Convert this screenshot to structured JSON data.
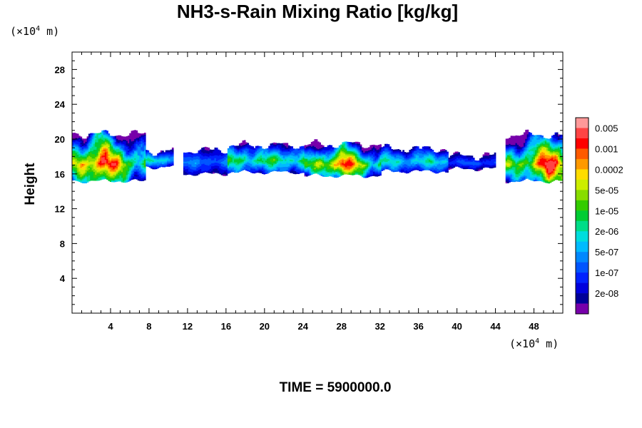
{
  "chart_data": {
    "type": "heatmap",
    "title": "NH3-s-Rain Mixing Ratio [kg/kg]",
    "ylabel": "Height",
    "xlabel": "",
    "y_unit": {
      "prefix": "(×10",
      "exp": "4",
      "suffix": " m)"
    },
    "x_unit": {
      "prefix": "(×10",
      "exp": "4",
      "suffix": " m)"
    },
    "xlim": [
      0,
      51
    ],
    "ylim": [
      0,
      30
    ],
    "xticks": [
      4,
      8,
      12,
      16,
      20,
      24,
      28,
      32,
      36,
      40,
      44,
      48
    ],
    "yticks": [
      4,
      8,
      12,
      16,
      20,
      24,
      28
    ],
    "x_tick_labels": [
      "4",
      "8",
      "12",
      "16",
      "20",
      "24",
      "28",
      "32",
      "36",
      "40",
      "44",
      "48"
    ],
    "y_tick_labels": [
      "4",
      "8",
      "12",
      "16",
      "20",
      "24",
      "28"
    ],
    "footer": "TIME = 5900000.0",
    "colorbar": {
      "colors": [
        "#ff9999",
        "#ff4444",
        "#ff0000",
        "#ff5a00",
        "#ff9900",
        "#ffdd00",
        "#ccee00",
        "#88dd00",
        "#33cc00",
        "#00cc33",
        "#00dd88",
        "#00dddd",
        "#00bbff",
        "#0088ff",
        "#0055ff",
        "#0022ff",
        "#0000dd",
        "#000099",
        "#7700aa"
      ],
      "labels": [
        "0.005",
        "0.001",
        "0.0002",
        "5e-05",
        "1e-05",
        "2e-06",
        "5e-07",
        "1e-07",
        "2e-08"
      ],
      "label_levels": [
        1,
        3,
        5,
        7,
        9,
        11,
        13,
        15,
        17
      ]
    },
    "field": {
      "description_free": true,
      "bands": [
        {
          "x0": 0.0,
          "x1": 7.5,
          "ymin": 15.2,
          "ymax": 20.5,
          "core": 3.0,
          "core_y": 16.8,
          "peak": 1
        },
        {
          "x0": 7.5,
          "x1": 10.5,
          "ymin": 16.8,
          "ymax": 18.5,
          "core": 0,
          "core_y": 17.5,
          "peak": 9
        },
        {
          "x0": 11.5,
          "x1": 16.0,
          "ymin": 16.0,
          "ymax": 18.6,
          "core": 0,
          "core_y": 17.3,
          "peak": 12
        },
        {
          "x0": 16.0,
          "x1": 24.0,
          "ymin": 16.2,
          "ymax": 19.2,
          "core": 0,
          "core_y": 17.4,
          "peak": 7
        },
        {
          "x0": 24.0,
          "x1": 32.0,
          "ymin": 15.8,
          "ymax": 19.3,
          "core": 28.0,
          "core_y": 16.8,
          "peak": 2
        },
        {
          "x0": 32.0,
          "x1": 39.0,
          "ymin": 16.3,
          "ymax": 18.8,
          "core": 0,
          "core_y": 17.3,
          "peak": 9
        },
        {
          "x0": 39.0,
          "x1": 44.0,
          "ymin": 16.6,
          "ymax": 18.0,
          "core": 0,
          "core_y": 17.2,
          "peak": 13
        },
        {
          "x0": 45.0,
          "x1": 51.0,
          "ymin": 15.2,
          "ymax": 20.4,
          "core": 49.5,
          "core_y": 16.8,
          "peak": 1
        }
      ]
    }
  }
}
